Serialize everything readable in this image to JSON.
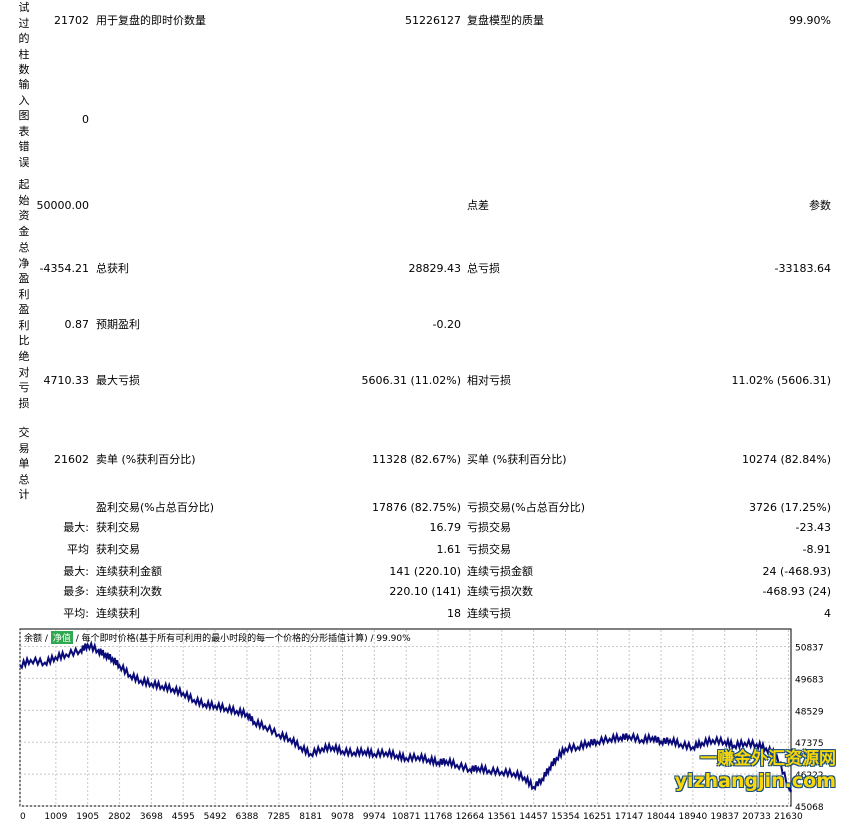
{
  "labels": {
    "bars_tested": "试过的柱数",
    "mismatch": "输入图表错误",
    "initial_deposit": "起始资金",
    "net_profit": "总净盈利",
    "profit_factor": "盈利比",
    "abs_drawdown": "绝对亏损",
    "total_trades": "交易单总计"
  },
  "rows": {
    "r1": {
      "v1": "21702",
      "l2": "用于复盘的即时价数量",
      "v2": "51226127",
      "l3": "复盘模型的质量",
      "v3": "99.90%"
    },
    "r2": {
      "v1": "0"
    },
    "r3": {
      "v1": "50000.00",
      "l3": "点差",
      "v3": "参数"
    },
    "r4": {
      "v1": "-4354.21",
      "l2": "总获利",
      "v2": "28829.43",
      "l3": "总亏损",
      "v3": "-33183.64"
    },
    "r5": {
      "v1": "0.87",
      "l2": "预期盈利",
      "v2": "-0.20"
    },
    "r6": {
      "v1": "4710.33",
      "l2": "最大亏损",
      "v2": "5606.31 (11.02%)",
      "l3": "相对亏损",
      "v3": "11.02% (5606.31)"
    },
    "r7": {
      "v1": "21602",
      "l2": "卖单 (%获利百分比)",
      "v2": "11328 (82.67%)",
      "l3": "买单 (%获利百分比)",
      "v3": "10274 (82.84%)"
    },
    "r8": {
      "l2": "盈利交易(%占总百分比)",
      "v2": "17876 (82.75%)",
      "l3": "亏损交易(%占总百分比)",
      "v3": "3726 (17.25%)"
    },
    "r9": {
      "pre": "最大:",
      "l2": "获利交易",
      "v2": "16.79",
      "l3": "亏损交易",
      "v3": "-23.43"
    },
    "r10": {
      "pre": "平均",
      "l2": "获利交易",
      "v2": "1.61",
      "l3": "亏损交易",
      "v3": "-8.91"
    },
    "r11": {
      "pre": "最大:",
      "l2": "连续获利金额",
      "v2": "141 (220.10)",
      "l3": "连续亏损金额",
      "v3": "24 (-468.93)"
    },
    "r12": {
      "pre": "最多:",
      "l2": "连续获利次数",
      "v2": "220.10 (141)",
      "l3": "连续亏损次数",
      "v3": "-468.93 (24)"
    },
    "r13": {
      "pre": "平均:",
      "l2": "连续获利",
      "v2": "18",
      "l3": "连续亏损",
      "v3": "4"
    }
  },
  "legend": {
    "balance": "余额",
    "sep1": "/",
    "equity": "净值",
    "desc": "/ 每个即时价格(基于所有可利用的最小时段的每一个价格的分形插值计算) / 99.90%"
  },
  "watermark": {
    "line1": "一赚金外汇资源网",
    "line2": "yizhangjin.com"
  },
  "colors": {
    "balance_line": "#0a0a78",
    "grid": "#c8c8c8",
    "watermark_text": "#f7d70a",
    "watermark_outline": "#1a4f7a",
    "equity_swatch": "#2fa84f"
  },
  "chart_data": {
    "type": "line",
    "x_ticks": [
      "0",
      "1009",
      "1905",
      "2802",
      "3698",
      "4595",
      "5492",
      "6388",
      "7285",
      "8181",
      "9078",
      "9974",
      "10871",
      "11768",
      "12664",
      "13561",
      "14457",
      "15354",
      "16251",
      "17147",
      "18044",
      "18940",
      "19837",
      "20733",
      "21630"
    ],
    "y_ticks": [
      "50837",
      "49683",
      "48529",
      "47375",
      "46222",
      "45068"
    ],
    "ylim": [
      45068,
      51000
    ],
    "xlim": [
      0,
      21702
    ],
    "series": [
      {
        "x": [
          0,
          300,
          700,
          1000,
          1300,
          1700,
          1905,
          2200,
          2400,
          2600,
          2802,
          3100,
          3400,
          3698,
          4000,
          4300,
          4595,
          4900,
          5200,
          5492,
          5800,
          6100,
          6388,
          6600,
          6900,
          7285,
          7600,
          7900,
          8181,
          8500,
          8800,
          9078,
          9400,
          9700,
          9974,
          10300,
          10600,
          10871,
          11200,
          11500,
          11768,
          12000,
          12300,
          12664,
          12900,
          13200,
          13561,
          13900,
          14200,
          14457,
          14700,
          14900,
          15100,
          15354,
          15700,
          16000,
          16251,
          16600,
          16900,
          17147,
          17500,
          17800,
          18044,
          18300,
          18600,
          18940,
          19200,
          19500,
          19837,
          20100,
          20400,
          20733,
          21000,
          21300,
          21630,
          21702
        ],
        "values": [
          50150,
          50350,
          50250,
          50450,
          50550,
          50700,
          50900,
          50700,
          50550,
          50400,
          50150,
          49800,
          49600,
          49500,
          49400,
          49300,
          49150,
          48900,
          48750,
          48700,
          48600,
          48500,
          48400,
          48100,
          47950,
          47650,
          47500,
          47200,
          46950,
          47150,
          47200,
          47050,
          47000,
          47050,
          46950,
          47000,
          46900,
          46800,
          46850,
          46750,
          46650,
          46700,
          46550,
          46400,
          46450,
          46350,
          46300,
          46250,
          46100,
          45750,
          46050,
          46450,
          46800,
          47150,
          47200,
          47350,
          47400,
          47500,
          47550,
          47600,
          47450,
          47550,
          47400,
          47450,
          47300,
          47200,
          47350,
          47450,
          47400,
          47250,
          47350,
          47300,
          47150,
          46900,
          45800,
          45650
        ]
      }
    ]
  }
}
